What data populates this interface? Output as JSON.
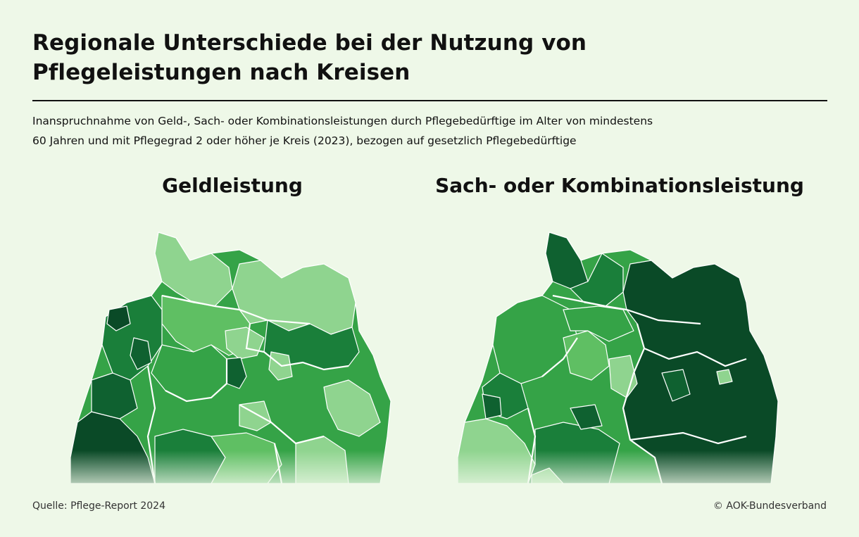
{
  "header": {
    "title_line1": "Regionale Unterschiede bei der Nutzung von",
    "title_line2": "Pflegeleistungen nach Kreisen",
    "subtitle_line1": "Inanspruchnahme von Geld-, Sach- oder Kombinationsleistungen durch Pflegebedürftige im Alter von mindestens",
    "subtitle_line2": "60 Jahren und mit Pflegegrad 2 oder höher je Kreis (2023), bezogen auf gesetzlich Pflegebedürftige"
  },
  "maps": {
    "left": {
      "title": "Geldleistung",
      "dominant_shades": [
        "medium-green",
        "light-green-north-east",
        "dark-green-south-west"
      ]
    },
    "right": {
      "title": "Sach- oder Kombinationsleistung",
      "dominant_shades": [
        "medium-green-west",
        "dark-green-east",
        "light-green-south-west"
      ]
    }
  },
  "colors": {
    "background": "#eef8e8",
    "shade_1_lightest": "#8fd48f",
    "shade_2": "#5fbf63",
    "shade_3": "#35a347",
    "shade_4": "#1a7f3a",
    "shade_5": "#0f6130",
    "shade_6_darkest": "#0a4a27",
    "boundary": "#ffffff"
  },
  "footer": {
    "source": "Quelle: Pflege-Report 2024",
    "copyright": "© AOK-Bundesverband"
  }
}
